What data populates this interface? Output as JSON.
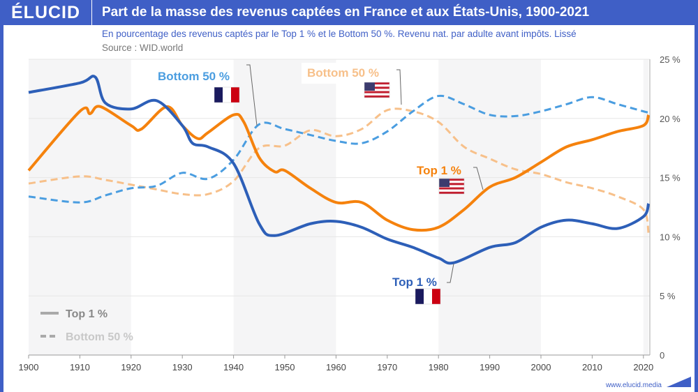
{
  "header": {
    "logo": "ÉLUCID",
    "title": "Part de la masse des revenus captées en France et aux États-Unis, 1900-2021"
  },
  "subtitle": "En pourcentage des revenus captés par le Top 1 % et le Bottom 50 %. Revenu nat. par adulte avant impôts. Lissé",
  "source": "Source : WID.world",
  "footer": "www.elucid.media",
  "chart_data": {
    "type": "line",
    "xlim": [
      1900,
      2021
    ],
    "ylim": [
      0,
      25
    ],
    "x_ticks": [
      "1900",
      "1910",
      "1920",
      "1930",
      "1940",
      "1950",
      "1960",
      "1970",
      "1980",
      "1990",
      "2000",
      "2010",
      "2020"
    ],
    "y_ticks": [
      "0",
      "5 %",
      "10 %",
      "15 %",
      "20 %",
      "25 %"
    ],
    "legend": {
      "position": "bottom-left",
      "items": [
        {
          "label": "Top 1 %",
          "style": "solid"
        },
        {
          "label": "Bottom 50 %",
          "style": "dashed"
        }
      ]
    },
    "x": [
      1900,
      1910,
      1913,
      1915,
      1920,
      1925,
      1930,
      1935,
      1940,
      1945,
      1948,
      1955,
      1960,
      1965,
      1970,
      1975,
      1980,
      1983,
      1990,
      1995,
      2000,
      2005,
      2010,
      2015,
      2020,
      2021
    ],
    "series": [
      {
        "name": "Top 1 %",
        "country": "France",
        "color": "#2d5fb8",
        "style": "solid",
        "x": [
          1900,
          1910,
          1913,
          1915,
          1920,
          1925,
          1930,
          1932,
          1935,
          1940,
          1945,
          1948,
          1955,
          1960,
          1965,
          1970,
          1975,
          1980,
          1983,
          1990,
          1995,
          2000,
          2005,
          2010,
          2015,
          2020,
          2021
        ],
        "values": [
          22.2,
          23.0,
          23.5,
          21.3,
          20.8,
          21.5,
          19.4,
          17.9,
          17.6,
          16.2,
          11.1,
          10.1,
          11.1,
          11.3,
          10.8,
          9.8,
          9.1,
          8.2,
          7.8,
          9.1,
          9.5,
          10.8,
          11.4,
          11.1,
          10.7,
          11.7,
          12.8
        ]
      },
      {
        "name": "Top 1 %",
        "country": "États-Unis",
        "color": "#f5820d",
        "style": "solid",
        "x": [
          1900,
          1910,
          1912,
          1914,
          1920,
          1922,
          1927,
          1930,
          1933,
          1935,
          1940,
          1942,
          1945,
          1948,
          1950,
          1955,
          1960,
          1965,
          1970,
          1975,
          1980,
          1985,
          1990,
          1995,
          2000,
          2005,
          2010,
          2015,
          2020,
          2021
        ],
        "values": [
          15.6,
          20.6,
          20.4,
          21.0,
          19.4,
          19.1,
          21.0,
          19.4,
          18.3,
          18.8,
          20.3,
          19.7,
          16.7,
          15.5,
          15.6,
          14.1,
          12.9,
          12.9,
          11.4,
          10.6,
          10.8,
          12.3,
          14.2,
          15.0,
          16.3,
          17.6,
          18.2,
          18.9,
          19.4,
          20.3
        ]
      },
      {
        "name": "Bottom 50 %",
        "country": "France",
        "color": "#4a9de0",
        "style": "dashed",
        "x": [
          1900,
          1910,
          1915,
          1920,
          1925,
          1930,
          1935,
          1940,
          1945,
          1950,
          1955,
          1960,
          1965,
          1970,
          1975,
          1980,
          1985,
          1990,
          1995,
          2000,
          2005,
          2010,
          2015,
          2020,
          2021
        ],
        "values": [
          13.4,
          12.9,
          13.5,
          14.1,
          14.3,
          15.4,
          14.9,
          16.5,
          19.5,
          19.1,
          18.6,
          18.1,
          17.9,
          18.9,
          20.6,
          21.9,
          21.2,
          20.3,
          20.2,
          20.6,
          21.2,
          21.8,
          21.2,
          20.6,
          20.5
        ]
      },
      {
        "name": "Bottom 50 %",
        "country": "États-Unis",
        "color": "#f7c08a",
        "style": "dashed",
        "x": [
          1900,
          1910,
          1915,
          1920,
          1925,
          1930,
          1935,
          1940,
          1945,
          1950,
          1955,
          1960,
          1965,
          1970,
          1975,
          1980,
          1985,
          1990,
          1995,
          2000,
          2005,
          2010,
          2015,
          2020,
          2021
        ],
        "values": [
          14.5,
          15.1,
          14.8,
          14.4,
          14.0,
          13.6,
          13.6,
          14.7,
          17.5,
          17.7,
          19.0,
          18.5,
          19.1,
          20.7,
          20.6,
          19.7,
          17.6,
          16.6,
          15.7,
          15.3,
          14.6,
          14.1,
          13.4,
          12.3,
          10.3
        ]
      }
    ],
    "annotations": [
      {
        "text": "Bottom 50 %",
        "flag": "France",
        "color": "#4a9de0"
      },
      {
        "text": "Bottom 50 %",
        "flag": "USA",
        "color": "#f7c08a"
      },
      {
        "text": "Top 1 %",
        "flag": "USA",
        "color": "#f5820d"
      },
      {
        "text": "Top 1 %",
        "flag": "France",
        "color": "#2d5fb8"
      }
    ]
  }
}
